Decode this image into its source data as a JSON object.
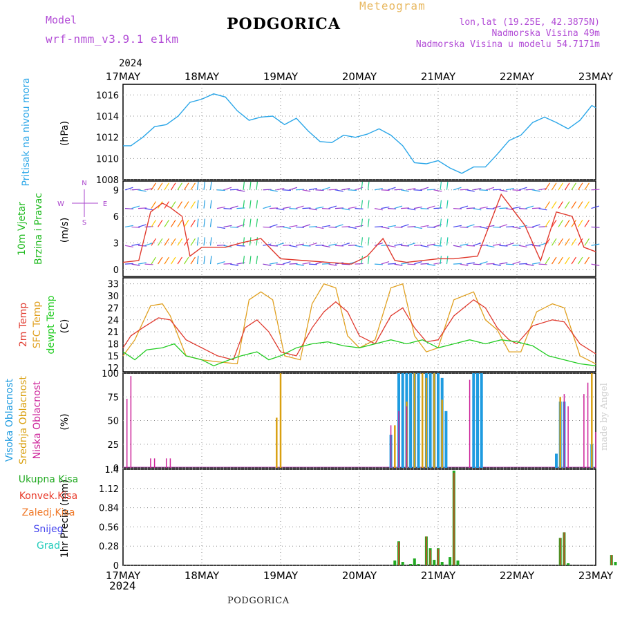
{
  "header": {
    "model_label": "Model",
    "model_value": "wrf-nmm_v3.9.1 e1km",
    "title": "PODGORICA",
    "meteogram": "Meteogram",
    "lonlat": "lon,lat (19.25E, 42.3875N)",
    "elev": "Nadmorska Visina 49m",
    "elev_model": "Nadmorska Visina u modelu 54.7171m",
    "footer": "PODGORICA",
    "credit": "made by Angel",
    "year": "2024"
  },
  "colors": {
    "pressure": "#2aa6e8",
    "wind_speed": "#e03a2e",
    "wind_black": "#000000",
    "temp2m": "#e03a2e",
    "sfctemp": "#e0a020",
    "dewpt": "#22cc22",
    "cloud_high": "#1e9be0",
    "cloud_mid": "#d9a010",
    "cloud_low": "#cc2299",
    "precip_total": "#22aa22",
    "precip_conv": "#e83a2a",
    "precip_frz": "#f07a2a",
    "snow": "#4444ee",
    "graupel": "#22ccbb",
    "wind_axis_labels": "#aa44cc"
  },
  "x_ticks": [
    "17MAY",
    "18MAY",
    "19MAY",
    "20MAY",
    "21MAY",
    "22MAY",
    "23MAY"
  ],
  "chart_data": [
    {
      "type": "line",
      "ylabel": "(hPa)",
      "side_label": "Pritisak na nivou mora",
      "yticks": [
        1008,
        1010,
        1012,
        1014,
        1016
      ],
      "ylim": [
        1008,
        1017
      ],
      "x_unit": "days since 17MAY 00UTC",
      "series": [
        {
          "name": "Pritisak na nivou mora",
          "x": [
            0,
            0.1,
            0.25,
            0.4,
            0.55,
            0.7,
            0.85,
            1.0,
            1.15,
            1.3,
            1.45,
            1.6,
            1.75,
            1.9,
            2.05,
            2.2,
            2.35,
            2.5,
            2.65,
            2.8,
            2.95,
            3.1,
            3.25,
            3.4,
            3.55,
            3.7,
            3.85,
            4.0,
            4.15,
            4.3,
            4.45,
            4.6,
            4.75,
            4.9,
            5.05,
            5.2,
            5.35,
            5.5,
            5.65,
            5.8,
            5.95,
            6.0
          ],
          "values": [
            1011.2,
            1011.2,
            1012.0,
            1013.0,
            1013.2,
            1014.0,
            1015.3,
            1015.6,
            1016.1,
            1015.8,
            1014.5,
            1013.6,
            1013.9,
            1014.0,
            1013.2,
            1013.8,
            1012.6,
            1011.6,
            1011.5,
            1012.2,
            1012.0,
            1012.3,
            1012.8,
            1012.2,
            1011.2,
            1009.6,
            1009.5,
            1009.8,
            1009.1,
            1008.6,
            1009.2,
            1009.2,
            1010.4,
            1011.7,
            1012.2,
            1013.4,
            1013.9,
            1013.4,
            1012.8,
            1013.6,
            1015.0,
            1014.8
          ]
        }
      ]
    },
    {
      "type": "line",
      "ylabel": "(m/s)",
      "side_label_1": "10m Vjetar",
      "side_label_2": "Brzina i Pravac",
      "compass": [
        "N",
        "E",
        "S",
        "W"
      ],
      "yticks": [
        0,
        3,
        6,
        9
      ],
      "ylim": [
        -0.8,
        10
      ],
      "x_unit": "days since 17MAY 00UTC",
      "series": [
        {
          "name": "Brzina",
          "x": [
            0,
            0.2,
            0.35,
            0.5,
            0.6,
            0.75,
            0.85,
            1.0,
            1.3,
            1.5,
            1.75,
            2.0,
            2.3,
            2.6,
            2.9,
            3.1,
            3.3,
            3.45,
            3.6,
            3.8,
            4.0,
            4.2,
            4.5,
            4.8,
            5.1,
            5.3,
            5.5,
            5.7,
            5.85,
            6.0
          ],
          "values": [
            0.8,
            1.0,
            6.5,
            7.5,
            7.0,
            6.0,
            1.5,
            2.5,
            2.5,
            3.0,
            3.5,
            1.2,
            1.0,
            0.8,
            0.6,
            1.5,
            3.5,
            1.0,
            0.8,
            1.0,
            1.2,
            1.2,
            1.5,
            8.5,
            5.0,
            1.0,
            6.5,
            6.0,
            2.5,
            2.0
          ]
        }
      ]
    },
    {
      "type": "line",
      "ylabel": "(C)",
      "side_label_1": "2m Temp",
      "side_label_2": "SFC Temp",
      "side_label_3": "dewpt Temp",
      "yticks": [
        12,
        15,
        18,
        21,
        24,
        27,
        30,
        33
      ],
      "ylim": [
        11,
        34.5
      ],
      "x_unit": "days since 17MAY 00UTC",
      "series": [
        {
          "name": "2m Temp",
          "x": [
            0,
            0.1,
            0.25,
            0.45,
            0.6,
            0.8,
            1.0,
            1.2,
            1.4,
            1.55,
            1.7,
            1.85,
            2.0,
            2.2,
            2.4,
            2.55,
            2.7,
            2.85,
            3.0,
            3.2,
            3.4,
            3.55,
            3.7,
            3.85,
            4.0,
            4.2,
            4.45,
            4.6,
            4.75,
            4.9,
            5.0,
            5.2,
            5.45,
            5.6,
            5.8,
            6.0
          ],
          "values": [
            17,
            20,
            22,
            24.5,
            24,
            19,
            17,
            15,
            14,
            22,
            24,
            21,
            16,
            15,
            22,
            26,
            28.5,
            26,
            20,
            18,
            25,
            27,
            22,
            18.5,
            19,
            25,
            29,
            27,
            22,
            19,
            18,
            22.5,
            24,
            23.5,
            18,
            15.5
          ]
        },
        {
          "name": "SFC Temp",
          "x": [
            0,
            0.15,
            0.35,
            0.5,
            0.6,
            0.8,
            1.0,
            1.2,
            1.45,
            1.6,
            1.75,
            1.9,
            2.05,
            2.25,
            2.4,
            2.55,
            2.7,
            2.85,
            3.0,
            3.2,
            3.4,
            3.55,
            3.7,
            3.85,
            4.0,
            4.2,
            4.45,
            4.6,
            4.75,
            4.9,
            5.05,
            5.25,
            5.45,
            5.6,
            5.8,
            6.0
          ],
          "values": [
            15,
            19,
            27.5,
            28,
            25,
            15,
            14,
            13.5,
            13,
            29,
            31,
            29,
            15,
            14,
            28,
            33,
            32,
            20,
            17,
            19,
            32,
            33,
            20,
            16,
            17,
            29,
            31,
            24,
            21.5,
            16,
            16,
            26,
            28,
            27,
            15,
            13
          ]
        },
        {
          "name": "dewpt Temp",
          "x": [
            0,
            0.15,
            0.3,
            0.5,
            0.65,
            0.8,
            1.0,
            1.15,
            1.35,
            1.5,
            1.7,
            1.85,
            2.0,
            2.2,
            2.4,
            2.6,
            2.8,
            3.0,
            3.2,
            3.4,
            3.6,
            3.8,
            4.0,
            4.2,
            4.4,
            4.6,
            4.8,
            5.0,
            5.2,
            5.4,
            5.6,
            5.8,
            6.0
          ],
          "values": [
            16,
            14,
            16.5,
            17,
            18,
            15,
            14,
            12.5,
            14,
            15,
            16,
            14,
            15,
            17,
            18,
            18.5,
            17.5,
            17,
            18,
            19,
            18,
            19,
            17,
            18,
            19,
            18,
            19,
            18.5,
            17.5,
            15,
            14,
            13,
            12.5
          ]
        }
      ]
    },
    {
      "type": "bar",
      "ylabel": "(%)",
      "side_label_1": "Visoka Oblacnost",
      "side_label_2": "Srednja Oblacnost",
      "side_label_3": "Niska Oblacnost",
      "yticks": [
        0,
        25,
        50,
        75,
        100
      ],
      "ylim": [
        0,
        100
      ],
      "x_unit": "days since 17MAY 00UTC",
      "series": [
        {
          "name": "Visoka Oblacnost",
          "x": [
            3.4,
            3.5,
            3.55,
            3.6,
            3.65,
            3.7,
            3.75,
            3.85,
            3.9,
            3.95,
            4.0,
            4.05,
            4.1,
            4.45,
            4.5,
            4.55,
            5.5,
            5.55,
            5.6,
            5.95
          ],
          "values": [
            35,
            100,
            100,
            100,
            100,
            100,
            100,
            100,
            100,
            100,
            100,
            95,
            60,
            100,
            100,
            100,
            15,
            70,
            70,
            25
          ]
        },
        {
          "name": "Srednja Oblacnost",
          "x": [
            1.95,
            2.0,
            3.45,
            3.6,
            3.7,
            3.8,
            3.85,
            3.95,
            4.05,
            5.55,
            5.95
          ],
          "values": [
            53,
            100,
            45,
            70,
            100,
            100,
            95,
            100,
            72,
            75,
            100
          ]
        },
        {
          "name": "Niska Oblacnost",
          "x": [
            0.05,
            0.1,
            0.35,
            0.4,
            0.55,
            0.6,
            3.4,
            3.5,
            3.6,
            4.4,
            5.6,
            5.65,
            5.85,
            5.9,
            6.0
          ],
          "values": [
            73,
            97,
            10,
            10,
            10,
            10,
            45,
            60,
            65,
            93,
            78,
            65,
            78,
            90,
            38
          ]
        }
      ]
    },
    {
      "type": "bar",
      "ylabel": "1hr Precip (mm)",
      "legend": [
        "Ukupna Kisa",
        "Konvek.Kisa",
        "Zaledj.Kisa",
        "Snijeg",
        "Grad"
      ],
      "yticks": [
        0,
        0.28,
        0.56,
        0.84,
        1.12,
        1.4
      ],
      "ylim": [
        0,
        1.4
      ],
      "x_unit": "days since 17MAY 00UTC",
      "series": [
        {
          "name": "Ukupna Kisa",
          "x": [
            3.45,
            3.5,
            3.55,
            3.65,
            3.7,
            3.75,
            3.85,
            3.9,
            3.95,
            4.0,
            4.05,
            4.15,
            4.2,
            4.25,
            4.3,
            5.55,
            5.6,
            5.65,
            6.2,
            6.25
          ],
          "values": [
            0.07,
            0.35,
            0.05,
            0.02,
            0.1,
            0.02,
            0.42,
            0.25,
            0.08,
            0.25,
            0.05,
            0.12,
            1.38,
            0.07,
            0.0,
            0.4,
            0.48,
            0.03,
            0.15,
            0.05
          ]
        },
        {
          "name": "Konvek.Kisa",
          "x": [
            3.5,
            3.85,
            3.9,
            4.0,
            4.2,
            5.55,
            5.6,
            6.2
          ],
          "values": [
            0.34,
            0.42,
            0.22,
            0.24,
            1.35,
            0.4,
            0.48,
            0.15
          ]
        }
      ]
    }
  ]
}
